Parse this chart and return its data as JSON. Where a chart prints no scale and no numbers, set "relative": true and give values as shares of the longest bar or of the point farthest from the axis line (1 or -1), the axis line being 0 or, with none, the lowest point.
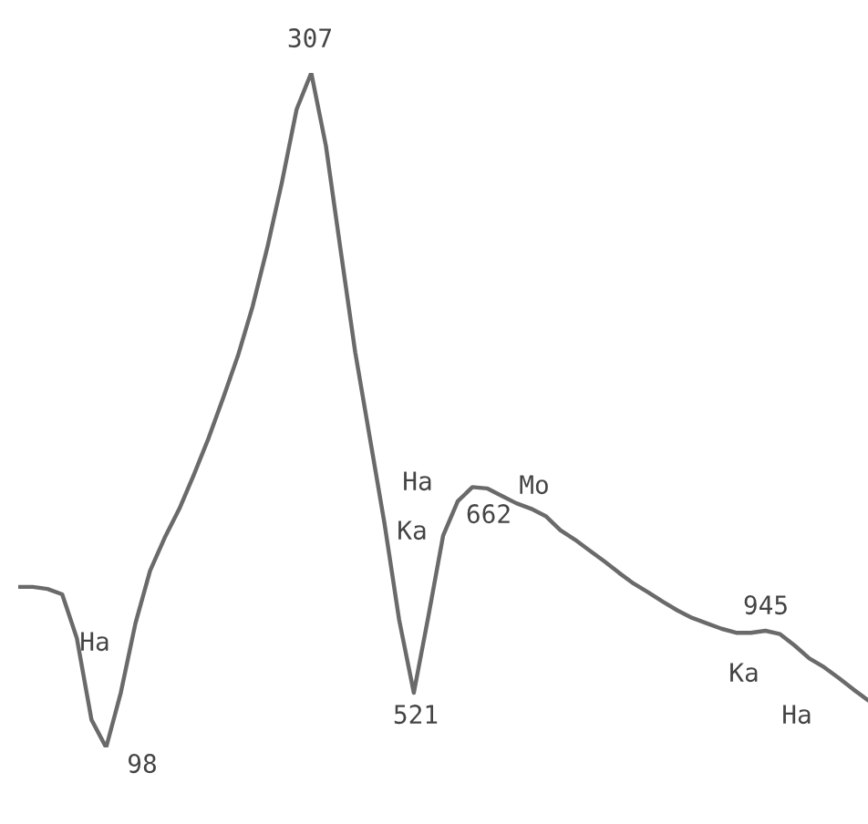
{
  "chart_data": {
    "type": "line",
    "relative": true,
    "marker": "none",
    "line_style": "solid",
    "categories": [
      null,
      null,
      null,
      null,
      null,
      null,
      null,
      null,
      null,
      null,
      null,
      null,
      null,
      null,
      null,
      null,
      null,
      null,
      null,
      null,
      null,
      null,
      null,
      null,
      null,
      null,
      null,
      null,
      null,
      null,
      null,
      null,
      null,
      null,
      null,
      null,
      null,
      null,
      null,
      null,
      null,
      null,
      null,
      null,
      null,
      null,
      null,
      null,
      null,
      null,
      null,
      null,
      null,
      null,
      null,
      null,
      null,
      null,
      null
    ],
    "series": [
      {
        "color": "#6a6a6a",
        "values": [
          0.238,
          0.238,
          0.235,
          0.227,
          0.162,
          0.041,
          0,
          0.081,
          0.184,
          0.262,
          0.311,
          0.354,
          0.405,
          0.459,
          0.519,
          0.581,
          0.654,
          0.741,
          0.838,
          0.946,
          1,
          0.892,
          0.738,
          0.586,
          0.459,
          0.332,
          0.189,
          0.081,
          0.195,
          0.314,
          0.365,
          0.386,
          0.384,
          0.373,
          0.362,
          0.354,
          0.343,
          0.322,
          0.308,
          0.292,
          0.276,
          0.259,
          0.243,
          0.23,
          0.216,
          0.203,
          0.192,
          0.184,
          0.176,
          0.17,
          0.17,
          0.173,
          0.168,
          0.151,
          0.132,
          0.119,
          0.103,
          0.086,
          0.07
        ]
      }
    ],
    "annotations": [
      "307",
      "98",
      "Ha",
      "521",
      "Ha",
      "Ka",
      "Mo",
      "662",
      "945",
      "Ka",
      "Ha"
    ]
  }
}
